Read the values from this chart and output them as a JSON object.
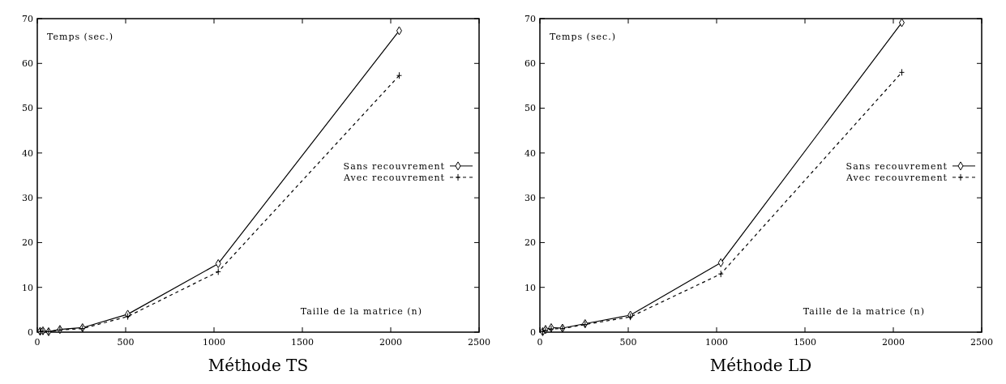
{
  "chart_data": [
    {
      "type": "line",
      "title": "Méthode TS",
      "xlabel": "Taille de la matrice (n)",
      "ylabel": "Temps (sec.)",
      "x": [
        16,
        32,
        64,
        128,
        256,
        512,
        1024,
        2048
      ],
      "xlim": [
        0,
        2500
      ],
      "xticks": [
        0,
        500,
        1000,
        1500,
        2000,
        2500
      ],
      "ylim": [
        0,
        70
      ],
      "yticks": [
        0,
        10,
        20,
        30,
        40,
        50,
        60,
        70
      ],
      "legend": "right",
      "series": [
        {
          "name": "Sans recouvrement",
          "color": "#000000",
          "marker": "diamond",
          "line_style": "solid",
          "values": [
            0.2,
            0.3,
            0.1,
            0.6,
            1.0,
            4.0,
            15.3,
            67.3
          ]
        },
        {
          "name": "Avec recouvrement",
          "color": "#000000",
          "marker": "cross",
          "line_style": "dashed",
          "values": [
            0.1,
            0.2,
            0.1,
            0.5,
            0.8,
            3.5,
            13.5,
            57.3
          ]
        }
      ]
    },
    {
      "type": "line",
      "title": "Méthode LD",
      "xlabel": "Taille de la matrice (n)",
      "ylabel": "Temps (sec.)",
      "x": [
        16,
        32,
        64,
        128,
        256,
        512,
        1024,
        2048
      ],
      "xlim": [
        0,
        2500
      ],
      "xticks": [
        0,
        500,
        1000,
        1500,
        2000,
        2500
      ],
      "ylim": [
        0,
        70
      ],
      "yticks": [
        0,
        10,
        20,
        30,
        40,
        50,
        60,
        70
      ],
      "legend": "right",
      "series": [
        {
          "name": "Sans recouvrement",
          "color": "#000000",
          "marker": "diamond",
          "line_style": "solid",
          "values": [
            0.1,
            0.6,
            1.0,
            0.9,
            1.9,
            3.8,
            15.5,
            69.1
          ]
        },
        {
          "name": "Avec recouvrement",
          "color": "#000000",
          "marker": "cross",
          "line_style": "dashed",
          "values": [
            0.1,
            0.4,
            0.7,
            0.8,
            1.7,
            3.4,
            13.0,
            58.0
          ]
        }
      ]
    }
  ]
}
